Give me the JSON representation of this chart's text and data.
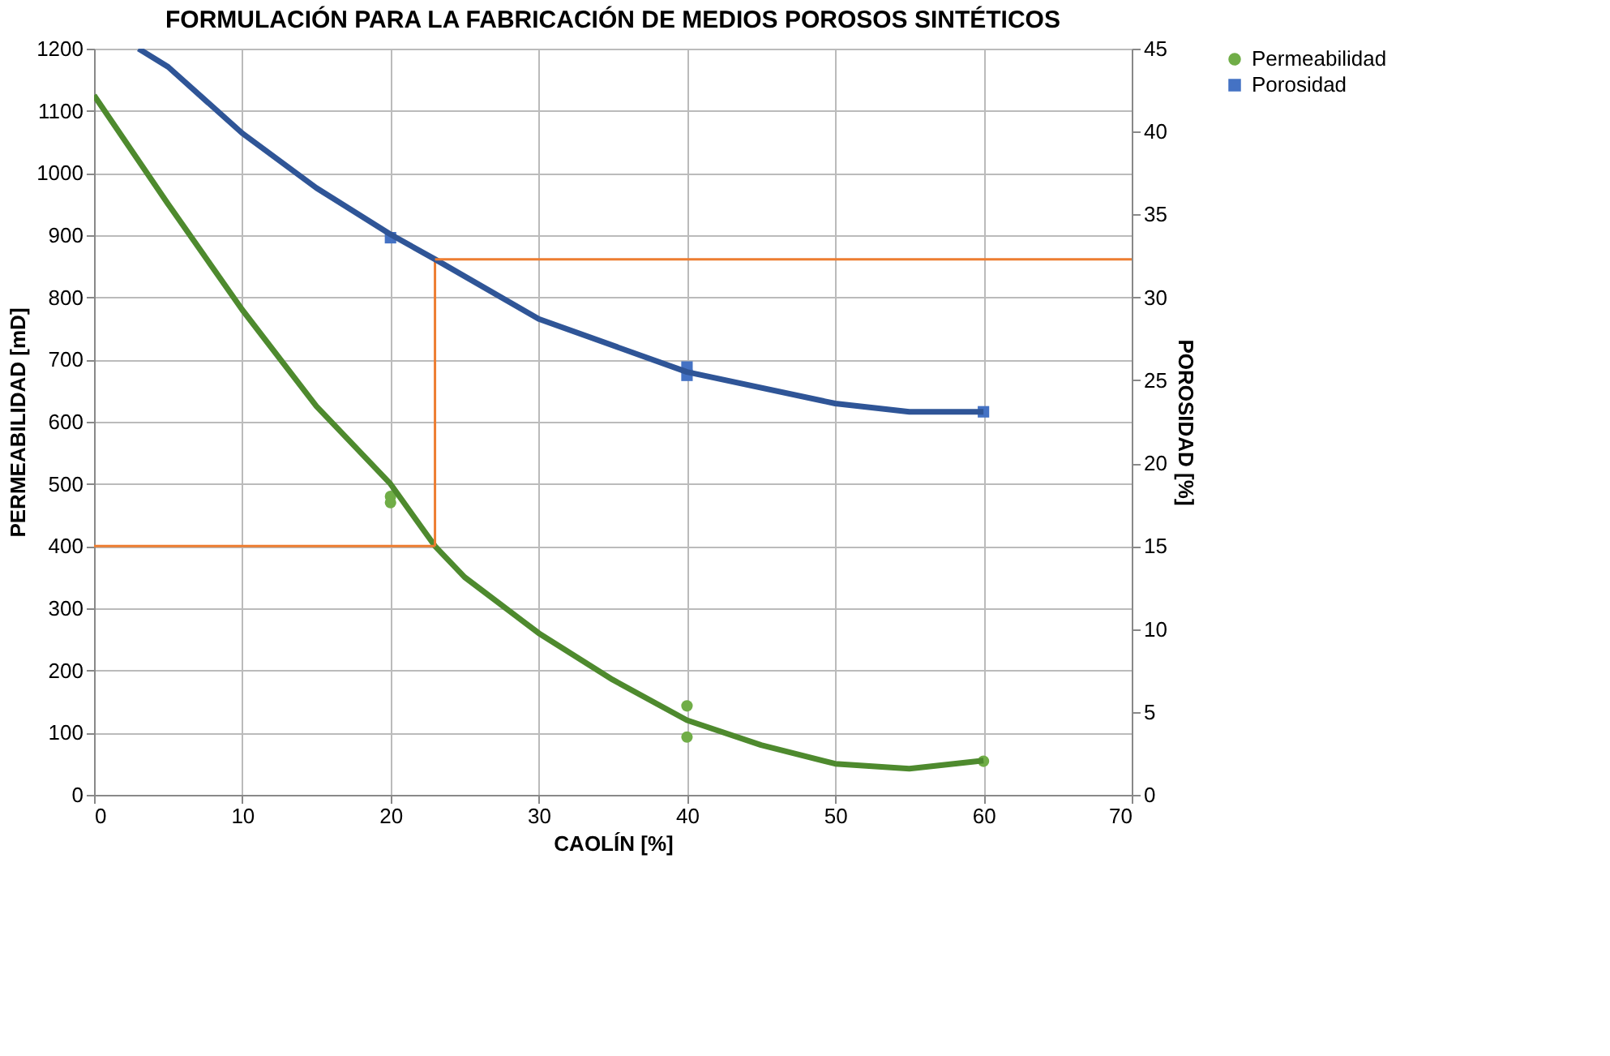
{
  "chart_data": {
    "type": "scatter",
    "title": "FORMULACIÓN PARA LA FABRICACIÓN DE MEDIOS POROSOS SINTÉTICOS",
    "xlabel": "CAOLÍN [%]",
    "ylabel": "PERMEABILIDAD [mD]",
    "y2label": "POROSIDAD [%]",
    "xlim": [
      0,
      70
    ],
    "xticks": [
      0,
      10,
      20,
      30,
      40,
      50,
      60,
      70
    ],
    "ylim": [
      0,
      1200
    ],
    "yticks": [
      0,
      100,
      200,
      300,
      400,
      500,
      600,
      700,
      800,
      900,
      1000,
      1100,
      1200
    ],
    "y2lim": [
      0,
      45
    ],
    "y2ticks": [
      0,
      5,
      10,
      15,
      20,
      25,
      30,
      35,
      40,
      45
    ],
    "grid": true,
    "legend": "right",
    "series": [
      {
        "name": "Permeabilidad",
        "marker": "circle",
        "color": "#70ad47",
        "x": [
          20,
          20,
          40,
          40,
          60
        ],
        "values": [
          480,
          470,
          143,
          93,
          54
        ]
      },
      {
        "name": "Porosidad",
        "marker": "square",
        "axis": "y2",
        "color": "#4472c4",
        "x": [
          20,
          40,
          40,
          60
        ],
        "values": [
          33.6,
          25.8,
          25.3,
          23.1
        ]
      },
      {
        "type": "line",
        "color": "#4e8a2e",
        "x": [
          0,
          5,
          10,
          15,
          20,
          23,
          25,
          30,
          35,
          40,
          45,
          50,
          55,
          60
        ],
        "values": [
          1125,
          950,
          780,
          625,
          500,
          400,
          350,
          260,
          185,
          120,
          80,
          50,
          42,
          55
        ]
      },
      {
        "type": "line",
        "axis": "y2",
        "color": "#2f5597",
        "x": [
          3,
          5,
          10,
          15,
          20,
          23,
          30,
          40,
          50,
          55,
          60
        ],
        "values": [
          45,
          43.9,
          39.9,
          36.6,
          33.8,
          32.3,
          28.7,
          25.5,
          23.6,
          23.1,
          23.1
        ]
      },
      {
        "type": "line",
        "color": "#ed7d31",
        "x": [
          0,
          23
        ],
        "values": [
          400,
          400
        ]
      },
      {
        "type": "line",
        "color": "#ed7d31",
        "x": [
          23,
          23
        ],
        "values": [
          400,
          860
        ]
      },
      {
        "type": "line",
        "axis": "y2",
        "color": "#ed7d31",
        "x": [
          23,
          70
        ],
        "values": [
          32.3,
          32.3
        ]
      }
    ]
  }
}
